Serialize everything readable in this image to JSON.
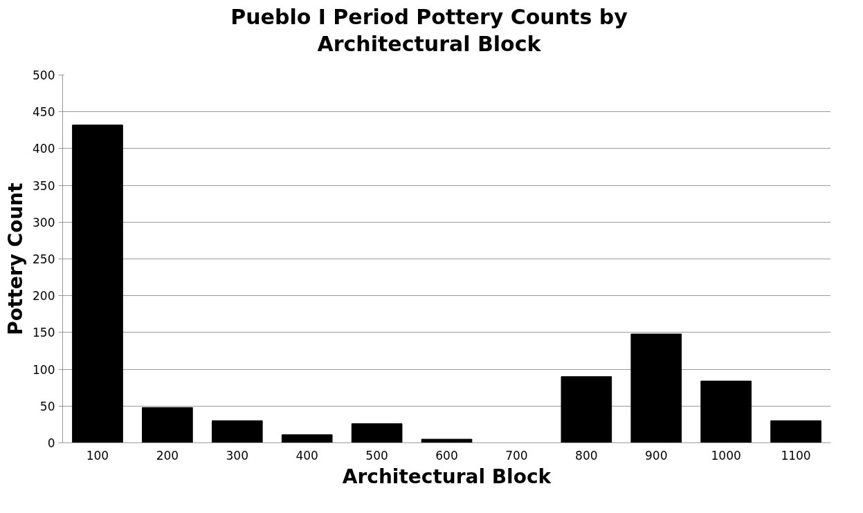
{
  "chart_data": {
    "type": "bar",
    "title": "Pueblo I Period Pottery Counts by\nArchitectural Block",
    "xlabel": "Architectural Block",
    "ylabel": "Pottery Count",
    "categories": [
      "100",
      "200",
      "300",
      "400",
      "500",
      "600",
      "700",
      "800",
      "900",
      "1000",
      "1100"
    ],
    "values": [
      432,
      48,
      30,
      11,
      26,
      5,
      0,
      90,
      148,
      84,
      30
    ],
    "color": "#000000",
    "ylim": [
      0,
      500
    ],
    "yticks": [
      0,
      50,
      100,
      150,
      200,
      250,
      300,
      350,
      400,
      450,
      500
    ],
    "grid": "y"
  }
}
